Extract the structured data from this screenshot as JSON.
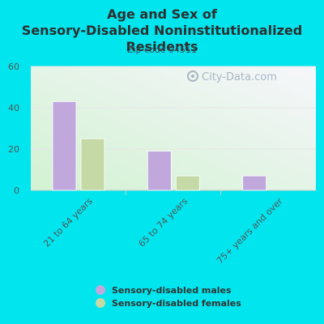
{
  "chart_data": {
    "type": "bar",
    "title": "Age and Sex of Sensory-Disabled Noninstitutionalized Residents",
    "subtitle": "Zip code 94511",
    "categories": [
      "21 to 64 years",
      "65 to 74 years",
      "75+ years and over"
    ],
    "series": [
      {
        "name": "Sensory-disabled males",
        "values": [
          43,
          19,
          7
        ],
        "color": "#c0a8dc"
      },
      {
        "name": "Sensory-disabled females",
        "values": [
          25,
          7,
          0
        ],
        "color": "#c4d9a6"
      }
    ],
    "ylim": [
      0,
      60
    ],
    "yticks": [
      0,
      20,
      40,
      60
    ],
    "grid": true,
    "legend_position": "bottom",
    "watermark": "City-Data.com"
  }
}
